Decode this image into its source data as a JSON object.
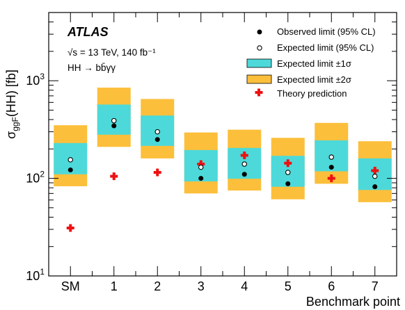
{
  "chart_data": {
    "type": "scatter",
    "experiment": "ATLAS",
    "energy_line": "√s = 13 TeV, 140 fb⁻¹",
    "process_line": "HH → bb̄γγ",
    "xlabel": "Benchmark point",
    "ylabel": "σggF(HH) [fb]",
    "ylabel_main": "σ",
    "ylabel_sub": "ggF",
    "ylabel_rest": "(HH) [fb]",
    "y_scale": "log",
    "ylim": [
      10,
      5000
    ],
    "y_ticks": [
      {
        "value": 10,
        "base": "10",
        "exp": "1"
      },
      {
        "value": 100,
        "base": "10",
        "exp": "2"
      },
      {
        "value": 1000,
        "base": "10",
        "exp": "3"
      }
    ],
    "categories": [
      "SM",
      "1",
      "2",
      "3",
      "4",
      "5",
      "6",
      "7"
    ],
    "legend_position": "top-right",
    "legend": {
      "observed": "Observed limit (95% CL)",
      "expected": "Expected limit (95% CL)",
      "band1": "Expected limit ±1σ",
      "band2": "Expected limit ±2σ",
      "theory": "Theory prediction"
    },
    "colors": {
      "band1": "#4dd9d9",
      "band2": "#fcbf3b",
      "theory": "#ee1111",
      "marker": "#000000"
    },
    "observed": [
      122,
      345,
      250,
      100,
      110,
      88,
      130,
      82
    ],
    "expected": [
      155,
      390,
      300,
      130,
      140,
      115,
      165,
      105
    ],
    "band1_low": [
      110,
      280,
      215,
      93,
      99,
      82,
      118,
      76
    ],
    "band1_high": [
      230,
      570,
      440,
      195,
      205,
      170,
      245,
      160
    ],
    "band2_low": [
      83,
      210,
      160,
      70,
      75,
      61,
      88,
      57
    ],
    "band2_high": [
      350,
      850,
      650,
      295,
      315,
      260,
      370,
      240
    ],
    "theory": [
      31,
      105,
      115,
      140,
      172,
      143,
      100,
      120
    ]
  }
}
